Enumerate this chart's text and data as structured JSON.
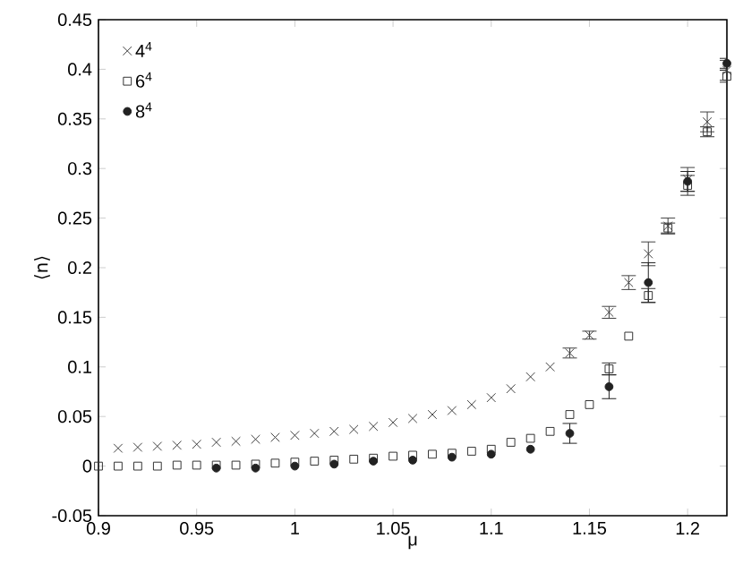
{
  "chart_data": {
    "type": "scatter",
    "xlabel": "μ",
    "ylabel": "⟨n⟩",
    "xlim": [
      0.9,
      1.22
    ],
    "ylim": [
      -0.05,
      0.45
    ],
    "xticks": [
      0.9,
      0.95,
      1,
      1.05,
      1.1,
      1.15,
      1.2
    ],
    "yticks": [
      -0.05,
      0,
      0.05,
      0.1,
      0.15,
      0.2,
      0.25,
      0.3,
      0.35,
      0.4,
      0.45
    ],
    "grid": false,
    "legend": "top left",
    "series": [
      {
        "name": "4$^{4}$",
        "color": "#404040",
        "marker": "cross",
        "x": [
          0.91,
          0.92,
          0.93,
          0.94,
          0.95,
          0.96,
          0.97,
          0.98,
          0.99,
          1.0,
          1.01,
          1.02,
          1.03,
          1.04,
          1.05,
          1.06,
          1.07,
          1.08,
          1.09,
          1.1,
          1.11,
          1.12,
          1.13,
          1.14,
          1.15,
          1.16,
          1.17,
          1.18,
          1.19,
          1.2,
          1.21,
          1.22
        ],
        "values": [
          0.018,
          0.019,
          0.02,
          0.021,
          0.022,
          0.024,
          0.025,
          0.027,
          0.029,
          0.031,
          0.033,
          0.035,
          0.037,
          0.04,
          0.044,
          0.048,
          0.052,
          0.056,
          0.062,
          0.069,
          0.078,
          0.09,
          0.1,
          0.114,
          0.132,
          0.155,
          0.185,
          0.214,
          0.242,
          0.289,
          0.347,
          0.399
        ],
        "errors": [
          null,
          null,
          null,
          null,
          null,
          null,
          null,
          null,
          null,
          null,
          null,
          null,
          null,
          null,
          null,
          null,
          null,
          null,
          null,
          null,
          null,
          null,
          null,
          0.005,
          0.004,
          0.006,
          0.007,
          0.012,
          0.008,
          0.012,
          0.01,
          0.01
        ]
      },
      {
        "name": "6$^{4}$",
        "color": "#333333",
        "marker": "square",
        "x": [
          0.9,
          0.91,
          0.92,
          0.93,
          0.94,
          0.95,
          0.96,
          0.97,
          0.98,
          0.99,
          1.0,
          1.01,
          1.02,
          1.03,
          1.04,
          1.05,
          1.06,
          1.07,
          1.08,
          1.09,
          1.1,
          1.11,
          1.12,
          1.13,
          1.14,
          1.15,
          1.16,
          1.17,
          1.18,
          1.19,
          1.2,
          1.21,
          1.22
        ],
        "values": [
          0.0,
          0.0,
          0.0,
          0.0,
          0.001,
          0.001,
          0.001,
          0.001,
          0.002,
          0.003,
          0.004,
          0.005,
          0.006,
          0.007,
          0.008,
          0.01,
          0.011,
          0.012,
          0.013,
          0.015,
          0.017,
          0.024,
          0.028,
          0.035,
          0.052,
          0.062,
          0.098,
          0.131,
          0.172,
          0.24,
          0.283,
          0.337,
          0.393
        ],
        "errors": [
          null,
          null,
          null,
          null,
          null,
          null,
          null,
          null,
          null,
          null,
          null,
          null,
          null,
          null,
          null,
          null,
          null,
          null,
          null,
          null,
          null,
          null,
          null,
          null,
          null,
          null,
          0.006,
          null,
          0.007,
          0.005,
          0.01,
          0.005,
          0.006
        ]
      },
      {
        "name": "8$^{4}$",
        "color": "#222222",
        "marker": "circle",
        "x": [
          0.96,
          0.98,
          1.0,
          1.02,
          1.04,
          1.06,
          1.08,
          1.1,
          1.12,
          1.14,
          1.16,
          1.18,
          1.2,
          1.22
        ],
        "values": [
          -0.002,
          -0.002,
          0.0,
          0.002,
          0.005,
          0.006,
          0.009,
          0.012,
          0.017,
          0.033,
          0.08,
          0.185,
          0.287,
          0.406
        ],
        "errors": [
          null,
          null,
          null,
          null,
          null,
          null,
          null,
          null,
          null,
          0.01,
          0.012,
          0.02,
          0.01,
          0.005
        ]
      }
    ]
  }
}
